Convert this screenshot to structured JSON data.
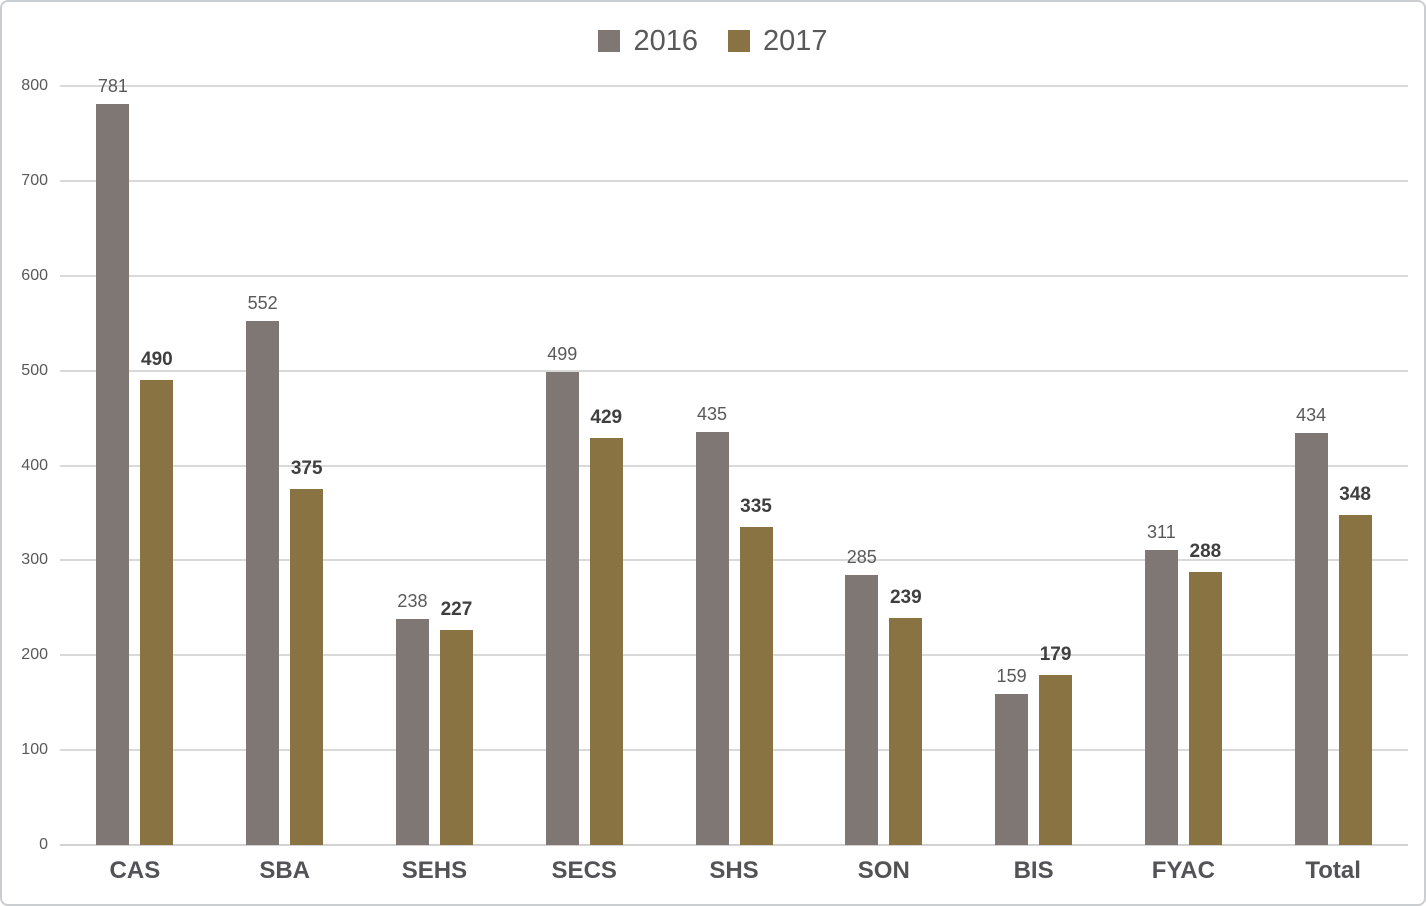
{
  "chart_data": {
    "type": "bar",
    "title": "",
    "xlabel": "",
    "ylabel": "",
    "categories": [
      "CAS",
      "SBA",
      "SEHS",
      "SECS",
      "SHS",
      "SON",
      "BIS",
      "FYAC",
      "Total"
    ],
    "series": [
      {
        "name": "2016",
        "color": "#7E7773",
        "values": [
          781,
          552,
          238,
          499,
          435,
          285,
          159,
          311,
          434
        ]
      },
      {
        "name": "2017",
        "color": "#8A7342",
        "values": [
          490,
          375,
          227,
          429,
          335,
          239,
          179,
          288,
          348
        ]
      }
    ],
    "ylim": [
      0,
      800
    ],
    "ytick_step": 100,
    "yticks": [
      0,
      100,
      200,
      300,
      400,
      500,
      600,
      700,
      800
    ],
    "grid": "horizontal",
    "gridline_color": "#d9d9d9",
    "legend_position": "top-center",
    "value_labels": true,
    "value_label_style": {
      "2016": "regular #595959",
      "2017": "bold #3f3f3f"
    }
  },
  "colors": {
    "background": "#ffffff",
    "border": "#cbced1",
    "axis_text": "#595959",
    "category_text": "#535357"
  }
}
